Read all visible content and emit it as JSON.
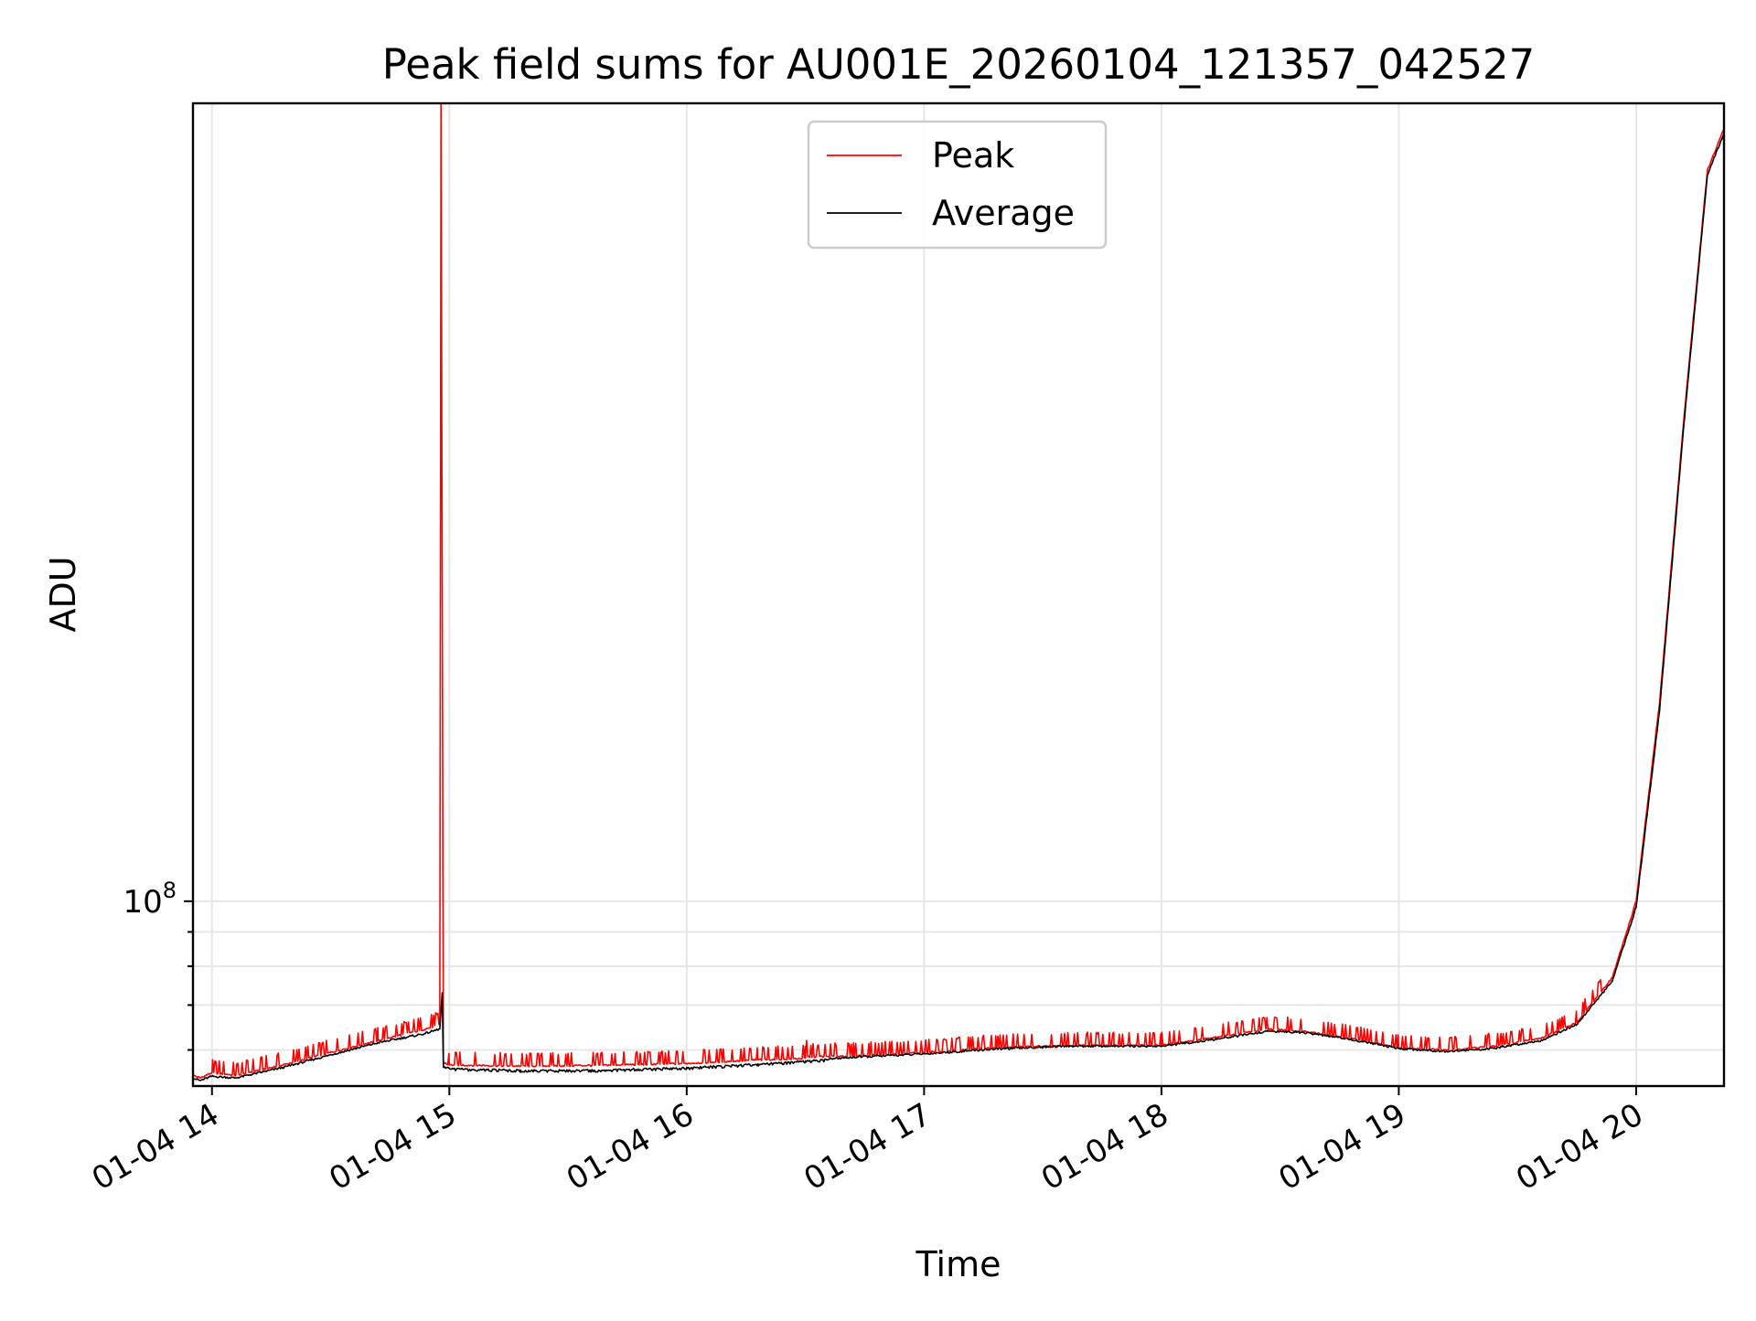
{
  "chart_data": {
    "type": "line",
    "title": "Peak field sums for AU001E_20260104_121357_042527",
    "xlabel": "Time",
    "ylabel": "ADU",
    "yscale": "log",
    "ylim": [
      53000000,
      1550000000
    ],
    "xlim_hours": [
      13.92,
      20.37
    ],
    "grid": true,
    "legend_position": "upper-center",
    "x_tick_hours": [
      14,
      15,
      16,
      17,
      18,
      19,
      20
    ],
    "x_tick_labels": [
      "01-04 14",
      "01-04 15",
      "01-04 16",
      "01-04 17",
      "01-04 18",
      "01-04 19",
      "01-04 20"
    ],
    "y_major_ticks": [
      {
        "value": 100000000,
        "base": "10",
        "exponent": "8"
      }
    ],
    "y_minor_ticks": [
      60000000,
      70000000,
      80000000,
      90000000
    ],
    "series": [
      {
        "name": "Peak",
        "color": "#ff0000",
        "x_hours": [
          13.92,
          13.95,
          14.0,
          14.1,
          14.3,
          14.5,
          14.7,
          14.9,
          14.96,
          14.965,
          14.975,
          15.0,
          15.3,
          15.6,
          16.0,
          16.3,
          16.5,
          16.505,
          16.51,
          16.7,
          17.0,
          17.3,
          17.6,
          17.8,
          18.0,
          18.2,
          18.45,
          18.6,
          18.8,
          19.0,
          19.2,
          19.4,
          19.6,
          19.75,
          19.9,
          20.0,
          20.1,
          20.2,
          20.3,
          20.37
        ],
        "values": [
          55000000,
          54500000,
          55500000,
          55000000,
          57000000,
          59500000,
          62000000,
          64500000,
          65500000,
          1550000000,
          57500000,
          57000000,
          56800000,
          56900000,
          57300000,
          58000000,
          58300000,
          62000000,
          58600000,
          58800000,
          59500000,
          60500000,
          61000000,
          61000000,
          61000000,
          62500000,
          64500000,
          64000000,
          62500000,
          60500000,
          60000000,
          60800000,
          62500000,
          66000000,
          77000000,
          100000000,
          200000000,
          520000000,
          1230000000,
          1420000000
        ],
        "spikes": "frequent short upward spikes throughout"
      },
      {
        "name": "Average",
        "color": "#000000",
        "x_hours": [
          13.92,
          13.95,
          14.0,
          14.1,
          14.3,
          14.5,
          14.7,
          14.9,
          14.96,
          14.97,
          14.975,
          15.0,
          15.3,
          15.6,
          16.0,
          16.3,
          16.5,
          16.7,
          17.0,
          17.3,
          17.6,
          17.8,
          18.0,
          18.2,
          18.45,
          18.6,
          18.8,
          19.0,
          19.2,
          19.4,
          19.6,
          19.75,
          19.9,
          20.0,
          20.1,
          20.2,
          20.3,
          20.37
        ],
        "values": [
          54500000,
          54000000,
          54800000,
          54500000,
          56500000,
          59000000,
          61500000,
          63500000,
          64500000,
          73000000,
          56500000,
          56300000,
          56000000,
          56000000,
          56500000,
          57200000,
          57800000,
          58500000,
          59200000,
          60200000,
          60800000,
          60800000,
          60800000,
          62000000,
          64000000,
          63700000,
          62200000,
          60300000,
          59700000,
          60300000,
          62000000,
          65500000,
          76000000,
          98000000,
          195000000,
          510000000,
          1210000000,
          1400000000
        ]
      }
    ]
  }
}
